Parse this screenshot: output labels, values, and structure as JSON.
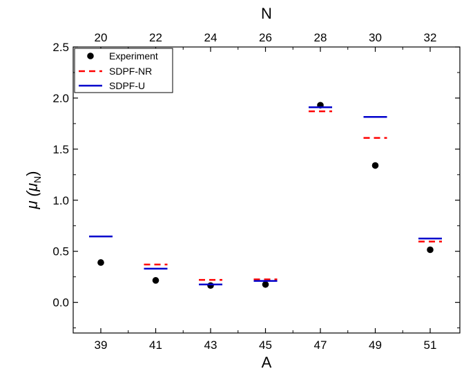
{
  "chart_data": {
    "type": "scatter",
    "x_categories": [
      "39",
      "41",
      "43",
      "45",
      "47",
      "49",
      "51"
    ],
    "top_categories": [
      "20",
      "22",
      "24",
      "26",
      "28",
      "30",
      "32"
    ],
    "xlabel": "A",
    "top_xlabel": "N",
    "ylabel_main": "μ (μ",
    "ylabel_sub": "N",
    "ylabel_close": ")",
    "ylim": [
      -0.3,
      2.5
    ],
    "y_ticks": [
      "0.0",
      "0.5",
      "1.0",
      "1.5",
      "2.0",
      "2.5"
    ],
    "y_tick_values": [
      0.0,
      0.5,
      1.0,
      1.5,
      2.0,
      2.5
    ],
    "grid": false,
    "legend_position": "top-left",
    "series": [
      {
        "name": "Experiment",
        "style": "dot",
        "color": "#000000",
        "values": [
          0.39,
          0.215,
          0.165,
          0.175,
          1.93,
          1.34,
          0.515
        ]
      },
      {
        "name": "SDPF-NR",
        "style": "dash",
        "color": "#ff0000",
        "values": [
          null,
          0.37,
          0.22,
          0.225,
          1.87,
          1.61,
          0.595
        ]
      },
      {
        "name": "SDPF-U",
        "style": "line",
        "color": "#0000cc",
        "values": [
          0.645,
          0.33,
          0.175,
          0.21,
          1.91,
          1.815,
          0.625
        ]
      }
    ]
  }
}
